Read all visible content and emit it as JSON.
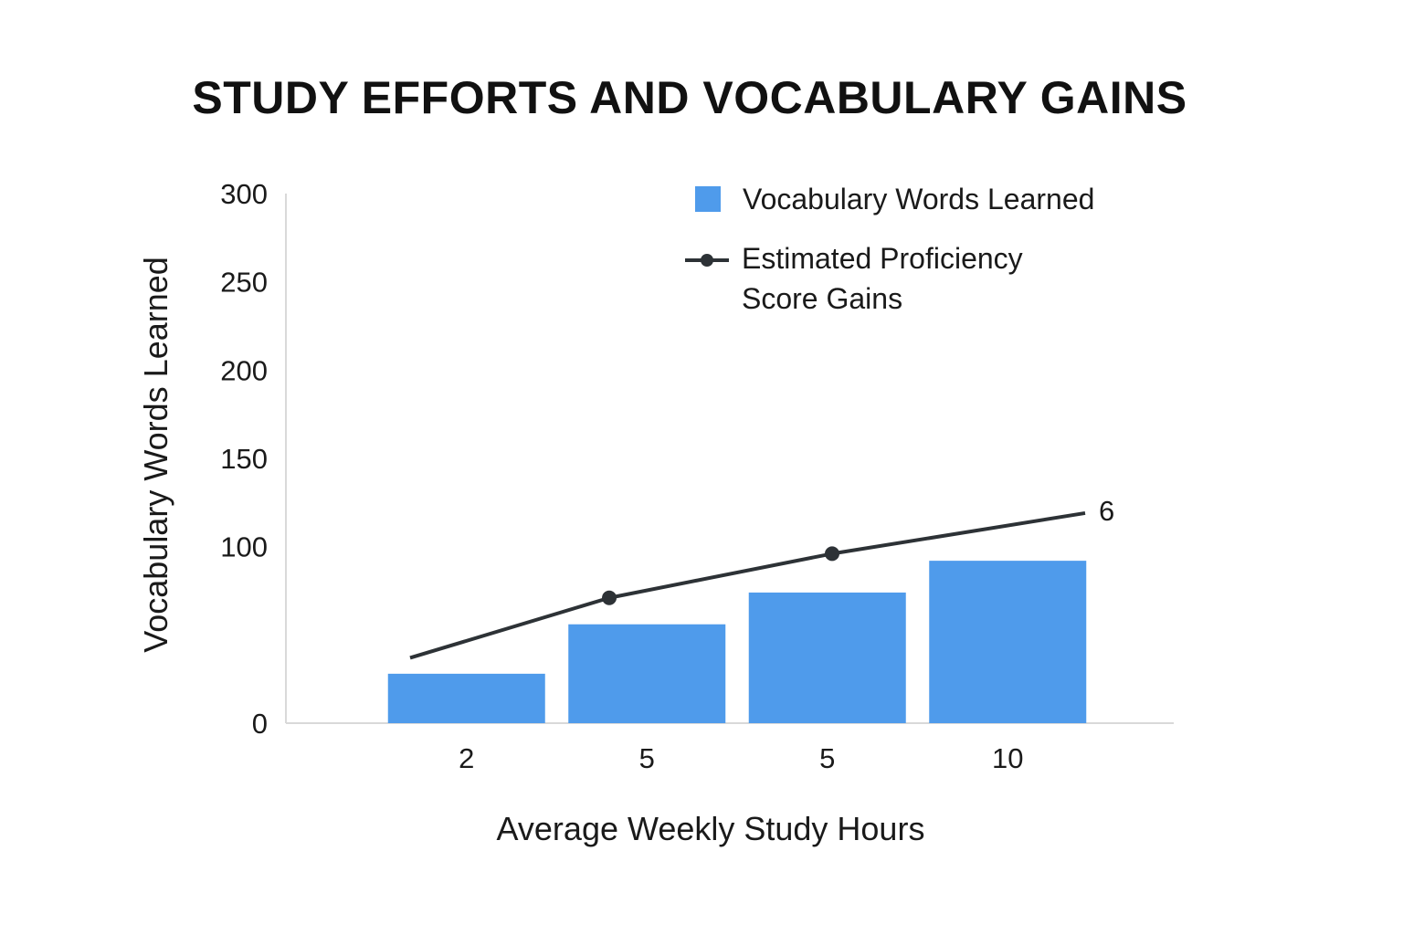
{
  "chart_data": {
    "type": "bar",
    "title": "STUDY EFFORTS AND VOCABULARY GAINS",
    "xlabel": "Average Weekly Study Hours",
    "ylabel": "Vocabulary Words Learned",
    "categories": [
      "2",
      "5",
      "5",
      "10"
    ],
    "ylim": [
      0,
      300
    ],
    "yticks": [
      0,
      100,
      150,
      200,
      250,
      300
    ],
    "grid": false,
    "legend_position": "top-right",
    "series": [
      {
        "name": "Vocabulary Words Learned",
        "type": "bar",
        "color": "#4f9beb",
        "values": [
          28,
          56,
          74,
          92
        ]
      },
      {
        "name": "Estimated Proficiency Score Gains",
        "type": "line",
        "color": "#2d3236",
        "values": [
          37,
          71,
          96,
          119
        ],
        "end_label": "6"
      }
    ]
  }
}
